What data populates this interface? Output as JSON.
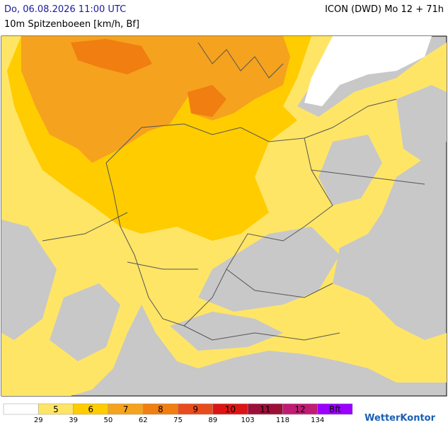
{
  "header": {
    "date": "Do, 06.08.2026 11:00 UTC",
    "model": "ICON (DWD) Mo 12 + 71h",
    "subtitle": "10m Spitzenboeen [km/h, Bf]"
  },
  "legend": {
    "levels": [
      {
        "bf": null,
        "color": "#ffffff"
      },
      {
        "bf": "5",
        "color": "#ffe566"
      },
      {
        "bf": "6",
        "color": "#ffcc00"
      },
      {
        "bf": "7",
        "color": "#f5a21e"
      },
      {
        "bf": "8",
        "color": "#f07e10"
      },
      {
        "bf": "9",
        "color": "#e84c1c"
      },
      {
        "bf": "10",
        "color": "#dc1414"
      },
      {
        "bf": "11",
        "color": "#9c1038"
      },
      {
        "bf": "12",
        "color": "#c01c74"
      },
      {
        "bf": "Bft",
        "color": "#9a00ff"
      }
    ],
    "kmh": [
      "29",
      "39",
      "50",
      "62",
      "75",
      "89",
      "103",
      "118",
      "134"
    ]
  },
  "logo": "WetterKontor"
}
